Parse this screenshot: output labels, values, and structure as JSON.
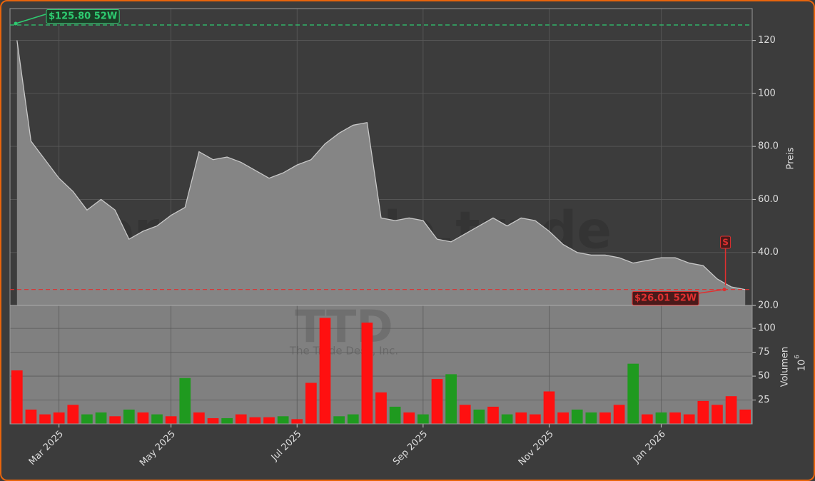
{
  "chart_data": [
    {
      "type": "area",
      "y_label": "Preis",
      "watermark": "forexsignale.trade",
      "symbol": "TTD",
      "company": "The Trade Desk, Inc.",
      "color": "#c8c8c8",
      "fill": "#858585",
      "values": [
        120,
        82,
        75,
        68,
        63,
        56,
        60,
        56,
        45,
        48,
        50,
        54,
        57,
        78,
        75,
        76,
        74,
        71,
        68,
        70,
        73,
        75,
        81,
        85,
        88,
        89,
        53,
        52,
        53,
        52,
        45,
        44,
        47,
        50,
        53,
        50,
        53,
        52,
        48,
        43,
        40,
        39,
        39,
        38,
        36,
        37,
        38,
        38,
        36,
        35,
        30,
        27,
        26
      ],
      "ylim": [
        20,
        132
      ],
      "yticks": [
        {
          "value": 20,
          "label": "20.0"
        },
        {
          "value": 40,
          "label": "40.0"
        },
        {
          "value": 60,
          "label": "60.0"
        },
        {
          "value": 80,
          "label": "80.0"
        },
        {
          "value": 100,
          "label": "100"
        },
        {
          "value": 120,
          "label": "120"
        }
      ],
      "high": {
        "value": 125.8,
        "label": "$125.80 52W",
        "color": "#2ecc71"
      },
      "low": {
        "value": 26.01,
        "label": "$26.01 52W",
        "color": "#e03030"
      },
      "signal": {
        "label": "S",
        "index": 51
      },
      "grid": true
    },
    {
      "type": "bar",
      "y_label": "Volumen",
      "scale_base": "10",
      "scale_exponent": "6",
      "categories": [
        null,
        null,
        null,
        "Mar 2025",
        null,
        null,
        null,
        null,
        null,
        null,
        null,
        "May 2025",
        null,
        null,
        null,
        null,
        null,
        null,
        null,
        null,
        "Jul 2025",
        null,
        null,
        null,
        null,
        null,
        null,
        null,
        null,
        "Sep 2025",
        null,
        null,
        null,
        null,
        null,
        null,
        null,
        null,
        "Nov 2025",
        null,
        null,
        null,
        null,
        null,
        null,
        null,
        "Jan 2026",
        null,
        null,
        null,
        null,
        null,
        null
      ],
      "values": [
        56,
        15,
        10,
        12,
        20,
        10,
        12,
        8,
        15,
        12,
        10,
        8,
        48,
        12,
        6,
        6,
        10,
        7,
        7,
        8,
        5,
        43,
        111,
        8,
        10,
        106,
        33,
        18,
        12,
        10,
        47,
        52,
        20,
        15,
        18,
        10,
        12,
        10,
        34,
        12,
        15,
        12,
        12,
        20,
        63,
        10,
        12,
        12,
        10,
        24,
        20,
        29,
        15
      ],
      "colors": [
        "#ff1010",
        "#ff1010",
        "#ff1010",
        "#ff1010",
        "#ff1010",
        "#1f9a1f",
        "#1f9a1f",
        "#ff1010",
        "#1f9a1f",
        "#ff1010",
        "#1f9a1f",
        "#ff1010",
        "#1f9a1f",
        "#ff1010",
        "#ff1010",
        "#1f9a1f",
        "#ff1010",
        "#ff1010",
        "#ff1010",
        "#1f9a1f",
        "#ff1010",
        "#ff1010",
        "#ff1010",
        "#1f9a1f",
        "#1f9a1f",
        "#ff1010",
        "#ff1010",
        "#1f9a1f",
        "#ff1010",
        "#1f9a1f",
        "#ff1010",
        "#1f9a1f",
        "#ff1010",
        "#1f9a1f",
        "#ff1010",
        "#1f9a1f",
        "#ff1010",
        "#ff1010",
        "#ff1010",
        "#ff1010",
        "#1f9a1f",
        "#1f9a1f",
        "#ff1010",
        "#ff1010",
        "#1f9a1f",
        "#ff1010",
        "#1f9a1f",
        "#ff1010",
        "#ff1010",
        "#ff1010",
        "#ff1010",
        "#ff1010",
        "#ff1010"
      ],
      "ylim": [
        0,
        124
      ],
      "yticks": [
        25,
        50,
        75,
        100
      ],
      "grid": true
    }
  ]
}
